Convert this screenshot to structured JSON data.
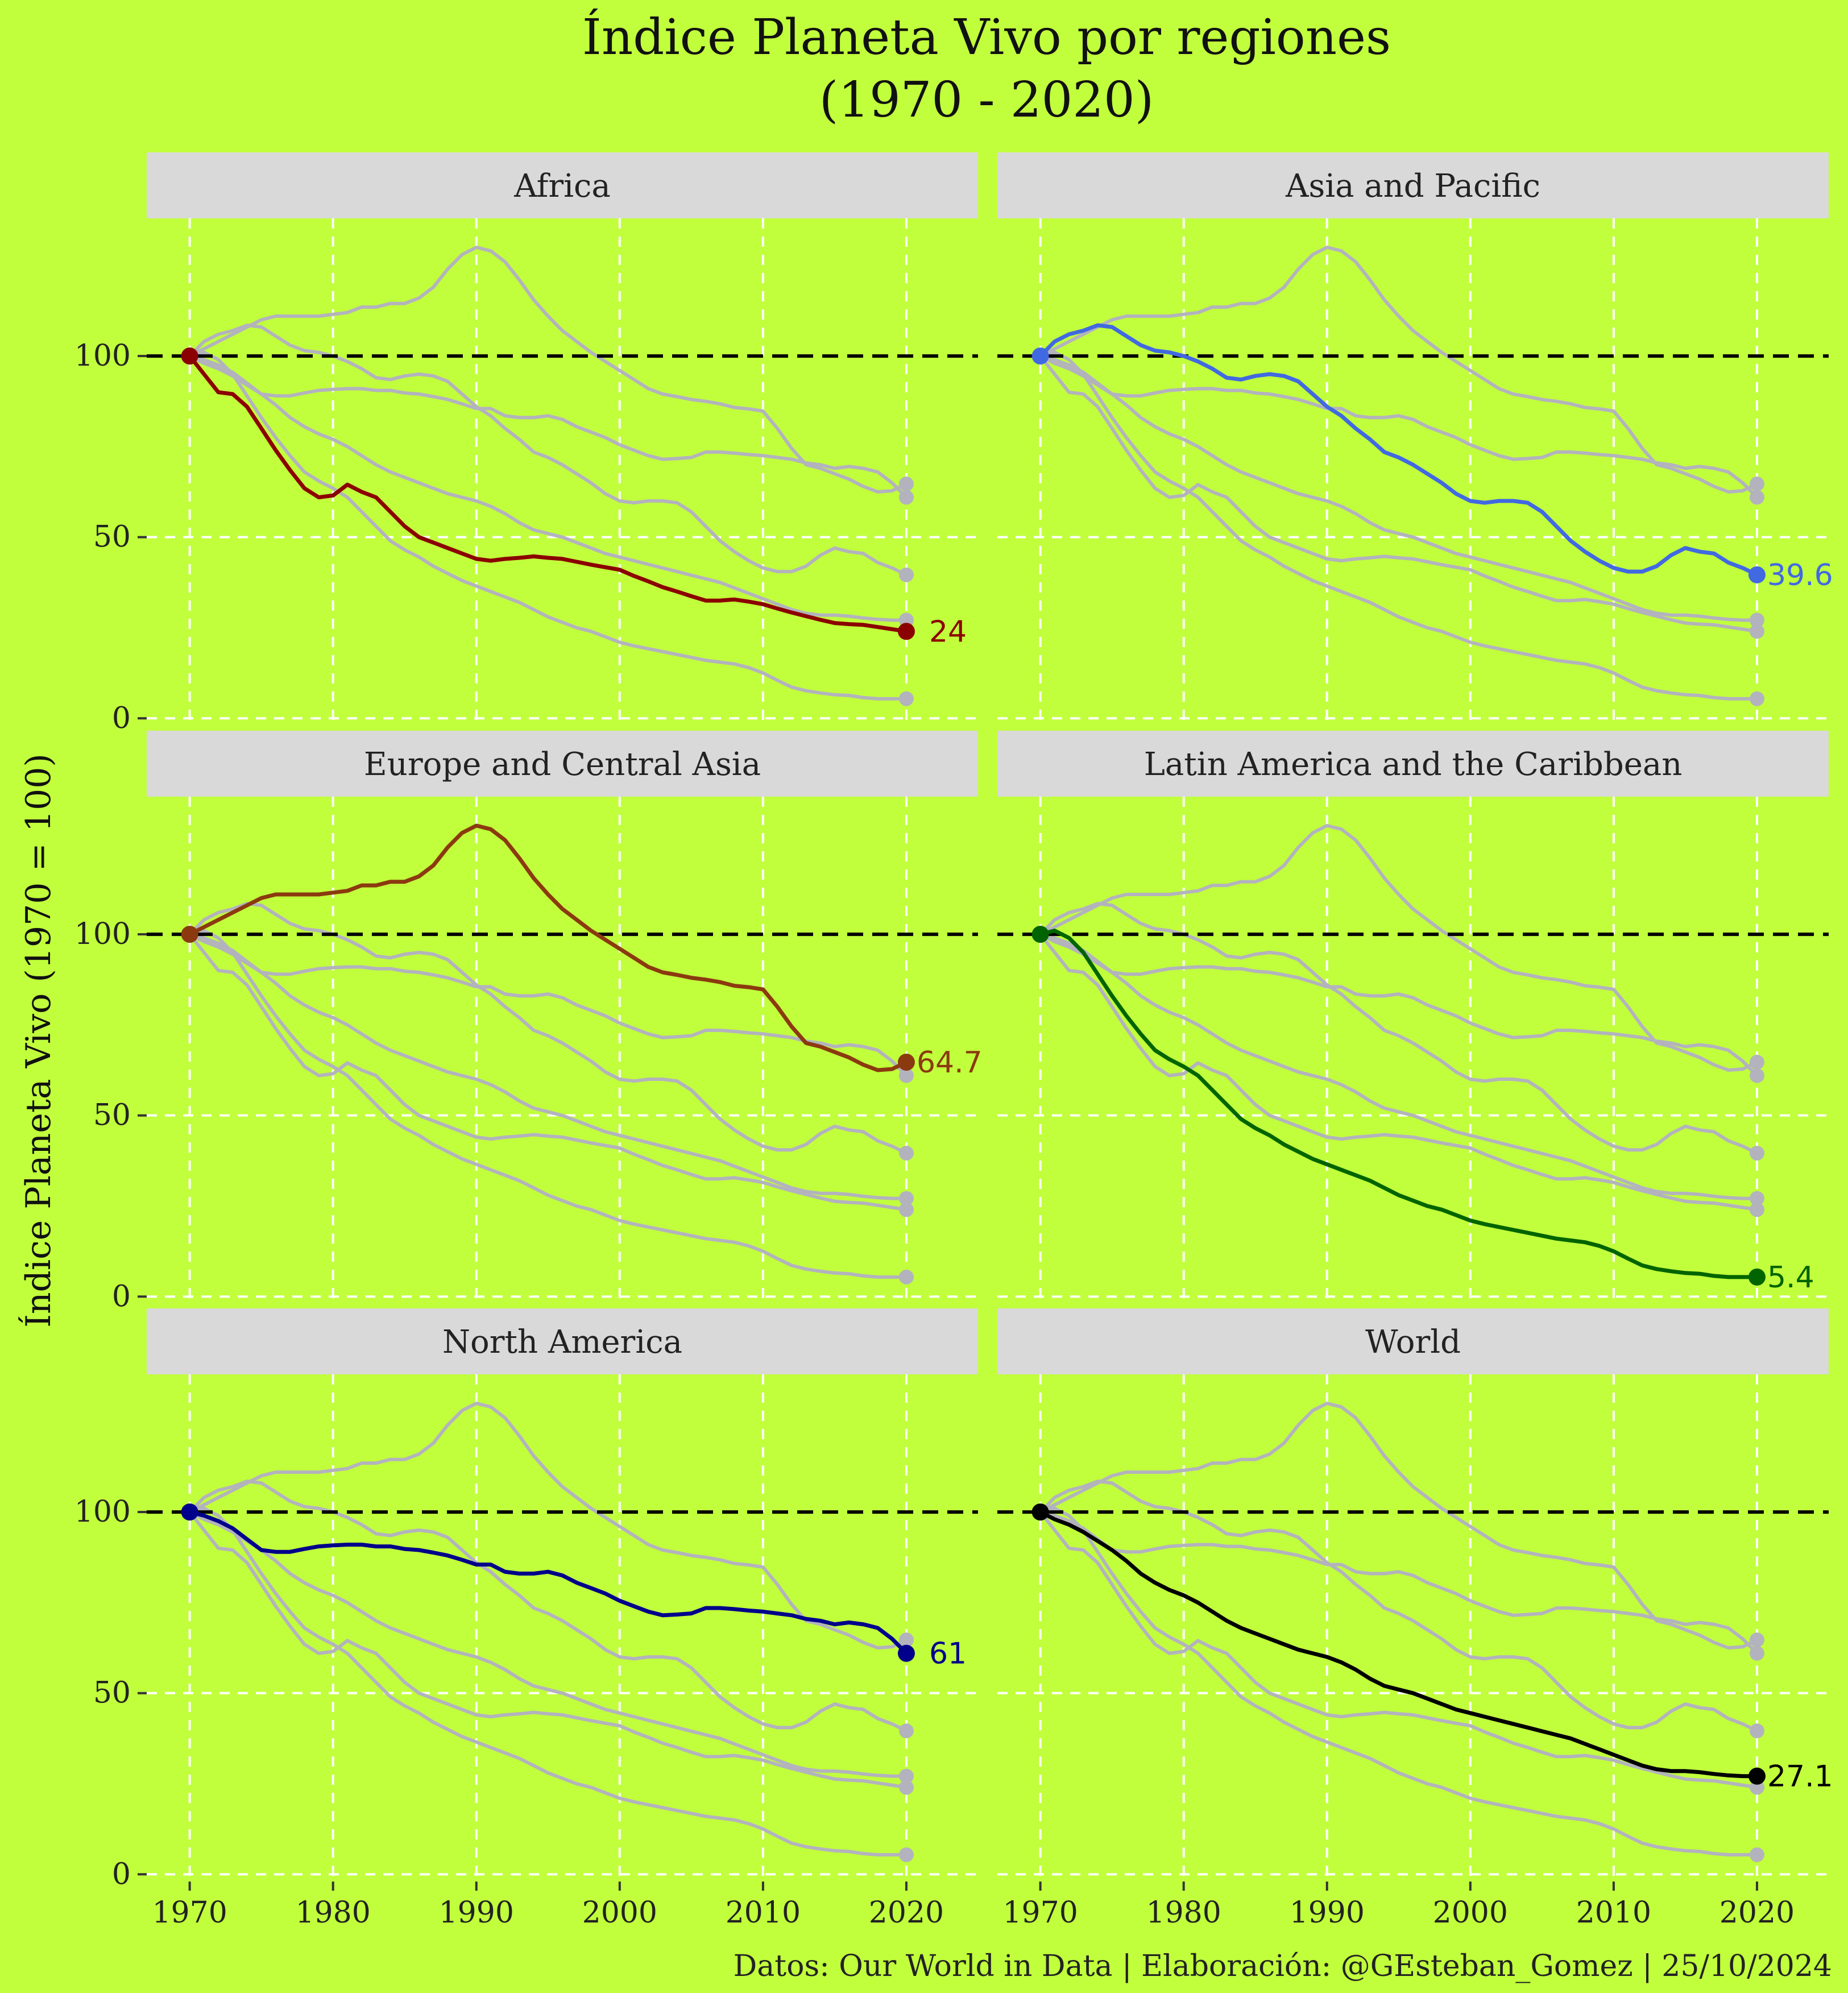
{
  "title_line1": "Índice Planeta Vivo por regiones",
  "title_line2": "(1970 - 2020)",
  "y_axis_label": "Índice Planeta Vivo (1970 = 100)",
  "caption": "Datos: Our World in Data | Elaboración: @GEsteban_Gomez | 25/10/2024",
  "colors": {
    "background": "#C1FF3C",
    "strip": "#D9D9D9",
    "context": "#B3B3BD",
    "grid": "#FFFFFF",
    "reference": "#000000"
  },
  "chart_data": {
    "type": "line",
    "facet_by": "region",
    "layout": "2 columns x 3 rows",
    "x": [
      1970,
      1971,
      1972,
      1973,
      1974,
      1975,
      1976,
      1977,
      1978,
      1979,
      1980,
      1981,
      1982,
      1983,
      1984,
      1985,
      1986,
      1987,
      1988,
      1989,
      1990,
      1991,
      1992,
      1993,
      1994,
      1995,
      1996,
      1997,
      1998,
      1999,
      2000,
      2001,
      2002,
      2003,
      2004,
      2005,
      2006,
      2007,
      2008,
      2009,
      2010,
      2011,
      2012,
      2013,
      2014,
      2015,
      2016,
      2017,
      2018,
      2019,
      2020
    ],
    "xlim": [
      1967,
      2025
    ],
    "ylim": [
      -2,
      138
    ],
    "x_ticks": [
      1970,
      1980,
      1990,
      2000,
      2010,
      2020
    ],
    "y_ticks": [
      0,
      50,
      100
    ],
    "reference_line": 100,
    "grid": true,
    "legend": "none",
    "series": [
      {
        "name": "Africa",
        "color": "#8B0000",
        "end_label": "24",
        "values": [
          100,
          95,
          90,
          89.5,
          86,
          80,
          74,
          68.5,
          63.5,
          61,
          61.5,
          64.5,
          62.5,
          61,
          57,
          53,
          50,
          48.5,
          47,
          45.5,
          44,
          43.5,
          44,
          44.3,
          44.7,
          44.3,
          44,
          43.2,
          42.4,
          41.7,
          41,
          39.3,
          37.8,
          36.2,
          35,
          33.7,
          32.5,
          32.5,
          32.8,
          32.2,
          31.5,
          30.3,
          29.2,
          28.2,
          27.2,
          26.3,
          26,
          25.8,
          25.2,
          24.6,
          24
        ]
      },
      {
        "name": "Asia and Pacific",
        "color": "#4169E1",
        "end_label": "39.6",
        "values": [
          100,
          104,
          106,
          107,
          108.5,
          108,
          105.5,
          103,
          101.5,
          101,
          100,
          98.5,
          96.5,
          94,
          93.5,
          94.5,
          95,
          94.5,
          93,
          89.5,
          86,
          83.5,
          80,
          77,
          73.5,
          72,
          70,
          67.5,
          65,
          62,
          60,
          59.5,
          60,
          60,
          59.5,
          57,
          53,
          49,
          46,
          43.5,
          41.5,
          40.5,
          40.5,
          42,
          45,
          47,
          46,
          45.5,
          43,
          41.5,
          39.6
        ]
      },
      {
        "name": "Europe and Central Asia",
        "color": "#8B3A0F",
        "end_label": "64.7",
        "values": [
          100,
          102,
          104,
          106,
          108,
          110,
          111,
          111,
          111,
          111,
          111.5,
          112,
          113.5,
          113.5,
          114.5,
          114.5,
          116,
          119,
          124,
          128,
          130,
          129,
          126,
          121,
          115.5,
          111,
          107,
          104,
          101,
          98.5,
          96,
          93.5,
          91,
          89.5,
          88.8,
          88,
          87.5,
          86.8,
          85.8,
          85.4,
          84.8,
          80,
          74.5,
          70,
          69,
          67.5,
          66,
          64,
          62.5,
          62.8,
          64.7
        ]
      },
      {
        "name": "Latin America and the Caribbean",
        "color": "#006400",
        "end_label": "5.4",
        "values": [
          100,
          101,
          99,
          95,
          89,
          83,
          77.5,
          72.5,
          68,
          65.5,
          63.5,
          61,
          57,
          53,
          49,
          46.5,
          44.5,
          42,
          40,
          38,
          36.5,
          35,
          33.5,
          32,
          30,
          28,
          26.5,
          25,
          24,
          22.5,
          21,
          20,
          19.2,
          18.4,
          17.6,
          16.8,
          16,
          15.5,
          15,
          14,
          12.5,
          10.5,
          8.6,
          7.6,
          7,
          6.5,
          6.3,
          5.7,
          5.4,
          5.4,
          5.4
        ]
      },
      {
        "name": "North America",
        "color": "#00008B",
        "end_label": "61",
        "values": [
          100,
          99,
          97.5,
          95.5,
          92.5,
          89.5,
          89,
          89,
          89.8,
          90.5,
          90.8,
          91,
          91,
          90.5,
          90.5,
          89.8,
          89.5,
          88.8,
          88,
          86.8,
          85.5,
          85.5,
          83.5,
          83,
          83,
          83.5,
          82.5,
          80.5,
          79,
          77.5,
          75.5,
          74,
          72.5,
          71.5,
          71.7,
          72,
          73.5,
          73.5,
          73.2,
          72.8,
          72.5,
          72,
          71.5,
          70.5,
          70,
          69,
          69.5,
          69,
          68,
          65,
          61
        ]
      },
      {
        "name": "World",
        "color": "#000000",
        "end_label": "27.1",
        "values": [
          100,
          98,
          96.5,
          94.5,
          92,
          89.5,
          86.5,
          83,
          80.5,
          78.5,
          77,
          75,
          72.5,
          70,
          68,
          66.5,
          65,
          63.5,
          62,
          61,
          60,
          58.5,
          56.5,
          54,
          52,
          51,
          50,
          48.5,
          47,
          45.5,
          44.5,
          43.5,
          42.5,
          41.5,
          40.5,
          39.5,
          38.5,
          37.5,
          36,
          34.5,
          33,
          31.5,
          30,
          29,
          28.5,
          28.5,
          28.2,
          27.7,
          27.3,
          27.1,
          27.1
        ]
      }
    ]
  }
}
